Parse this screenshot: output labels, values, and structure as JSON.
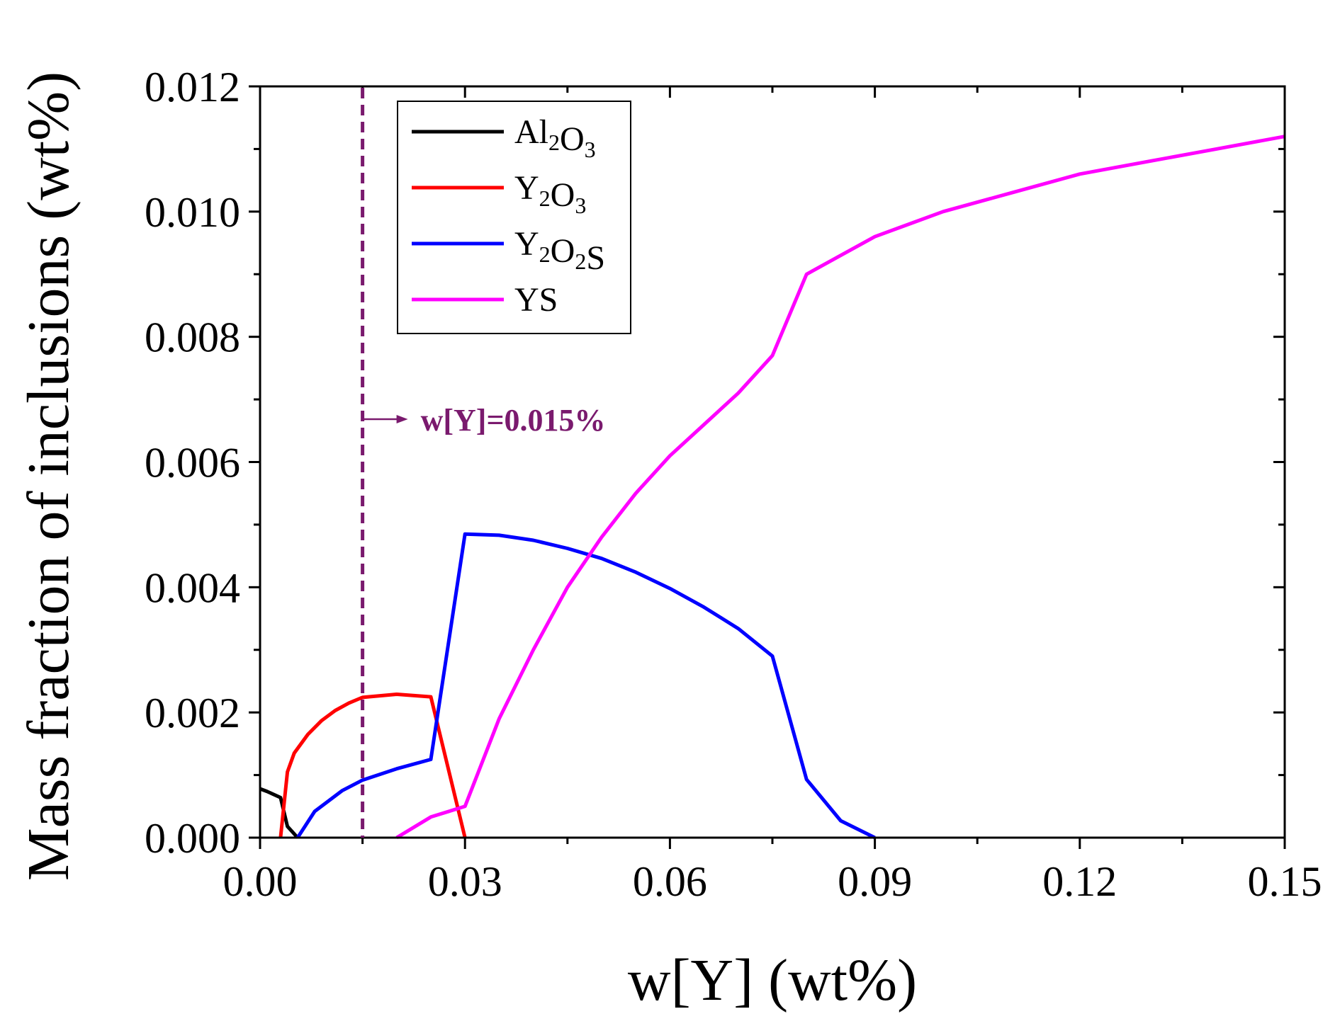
{
  "chart_data": {
    "type": "line",
    "title": "",
    "xlabel": "w[Y] (wt%)",
    "ylabel": "Mass fraction of inclusions (wt%)",
    "xlim": [
      0,
      0.15
    ],
    "ylim": [
      0,
      0.012
    ],
    "x_ticks": [
      "0.00",
      "0.03",
      "0.06",
      "0.09",
      "0.12",
      "0.15"
    ],
    "x_tick_values": [
      0,
      0.03,
      0.06,
      0.09,
      0.12,
      0.15
    ],
    "y_ticks": [
      "0.000",
      "0.002",
      "0.004",
      "0.006",
      "0.008",
      "0.010",
      "0.012"
    ],
    "y_tick_values": [
      0,
      0.002,
      0.004,
      0.006,
      0.008,
      0.01,
      0.012
    ],
    "legend_position": "top-left",
    "series": [
      {
        "name": "Al2O3",
        "label": {
          "a": "Al",
          "s1": "2",
          "b": "O",
          "s2": "3",
          "c": ""
        },
        "color": "#000000",
        "points": [
          [
            0,
            0.00078
          ],
          [
            0.001,
            0.00074
          ],
          [
            0.003,
            0.00064
          ],
          [
            0.004,
            0.00018
          ],
          [
            0.0055,
            0
          ]
        ]
      },
      {
        "name": "Y2O3",
        "label": {
          "a": "Y",
          "s1": "2",
          "b": "O",
          "s2": "3",
          "c": ""
        },
        "color": "#ff0000",
        "points": [
          [
            0.003,
            0
          ],
          [
            0.004,
            0.00105
          ],
          [
            0.005,
            0.00135
          ],
          [
            0.007,
            0.00165
          ],
          [
            0.009,
            0.00187
          ],
          [
            0.011,
            0.00203
          ],
          [
            0.013,
            0.00215
          ],
          [
            0.015,
            0.00224
          ],
          [
            0.02,
            0.00229
          ],
          [
            0.025,
            0.00225
          ],
          [
            0.03,
            0
          ]
        ]
      },
      {
        "name": "Y2O2S",
        "label": {
          "a": "Y",
          "s1": "2",
          "b": "O",
          "s2": "2",
          "c": "S"
        },
        "color": "#0000ff",
        "points": [
          [
            0.0055,
            0
          ],
          [
            0.008,
            0.00042
          ],
          [
            0.012,
            0.00075
          ],
          [
            0.015,
            0.00092
          ],
          [
            0.02,
            0.0011
          ],
          [
            0.025,
            0.00125
          ],
          [
            0.03,
            0.00485
          ],
          [
            0.035,
            0.00483
          ],
          [
            0.04,
            0.00475
          ],
          [
            0.045,
            0.00462
          ],
          [
            0.05,
            0.00446
          ],
          [
            0.055,
            0.00424
          ],
          [
            0.06,
            0.00398
          ],
          [
            0.065,
            0.00368
          ],
          [
            0.07,
            0.00334
          ],
          [
            0.075,
            0.0029
          ],
          [
            0.08,
            0.00093
          ],
          [
            0.085,
            0.00027
          ],
          [
            0.09,
            0
          ]
        ]
      },
      {
        "name": "YS",
        "label": {
          "a": "YS",
          "s1": "",
          "b": "",
          "s2": "",
          "c": ""
        },
        "color": "#ff00ff",
        "points": [
          [
            0.02,
            0
          ],
          [
            0.025,
            0.00033
          ],
          [
            0.03,
            0.0005
          ],
          [
            0.035,
            0.0019
          ],
          [
            0.04,
            0.003
          ],
          [
            0.045,
            0.004
          ],
          [
            0.05,
            0.0048
          ],
          [
            0.055,
            0.0055
          ],
          [
            0.06,
            0.0061
          ],
          [
            0.065,
            0.0066
          ],
          [
            0.07,
            0.0071
          ],
          [
            0.075,
            0.0077
          ],
          [
            0.08,
            0.009
          ],
          [
            0.085,
            0.0093
          ],
          [
            0.09,
            0.0096
          ],
          [
            0.095,
            0.0098
          ],
          [
            0.1,
            0.01
          ],
          [
            0.11,
            0.0103
          ],
          [
            0.12,
            0.0106
          ],
          [
            0.13,
            0.0108
          ],
          [
            0.14,
            0.011
          ],
          [
            0.15,
            0.0112
          ]
        ]
      }
    ],
    "annotation": {
      "text": "w[Y]=0.015%",
      "x": 0.015,
      "color": "#7a1a6e"
    }
  }
}
